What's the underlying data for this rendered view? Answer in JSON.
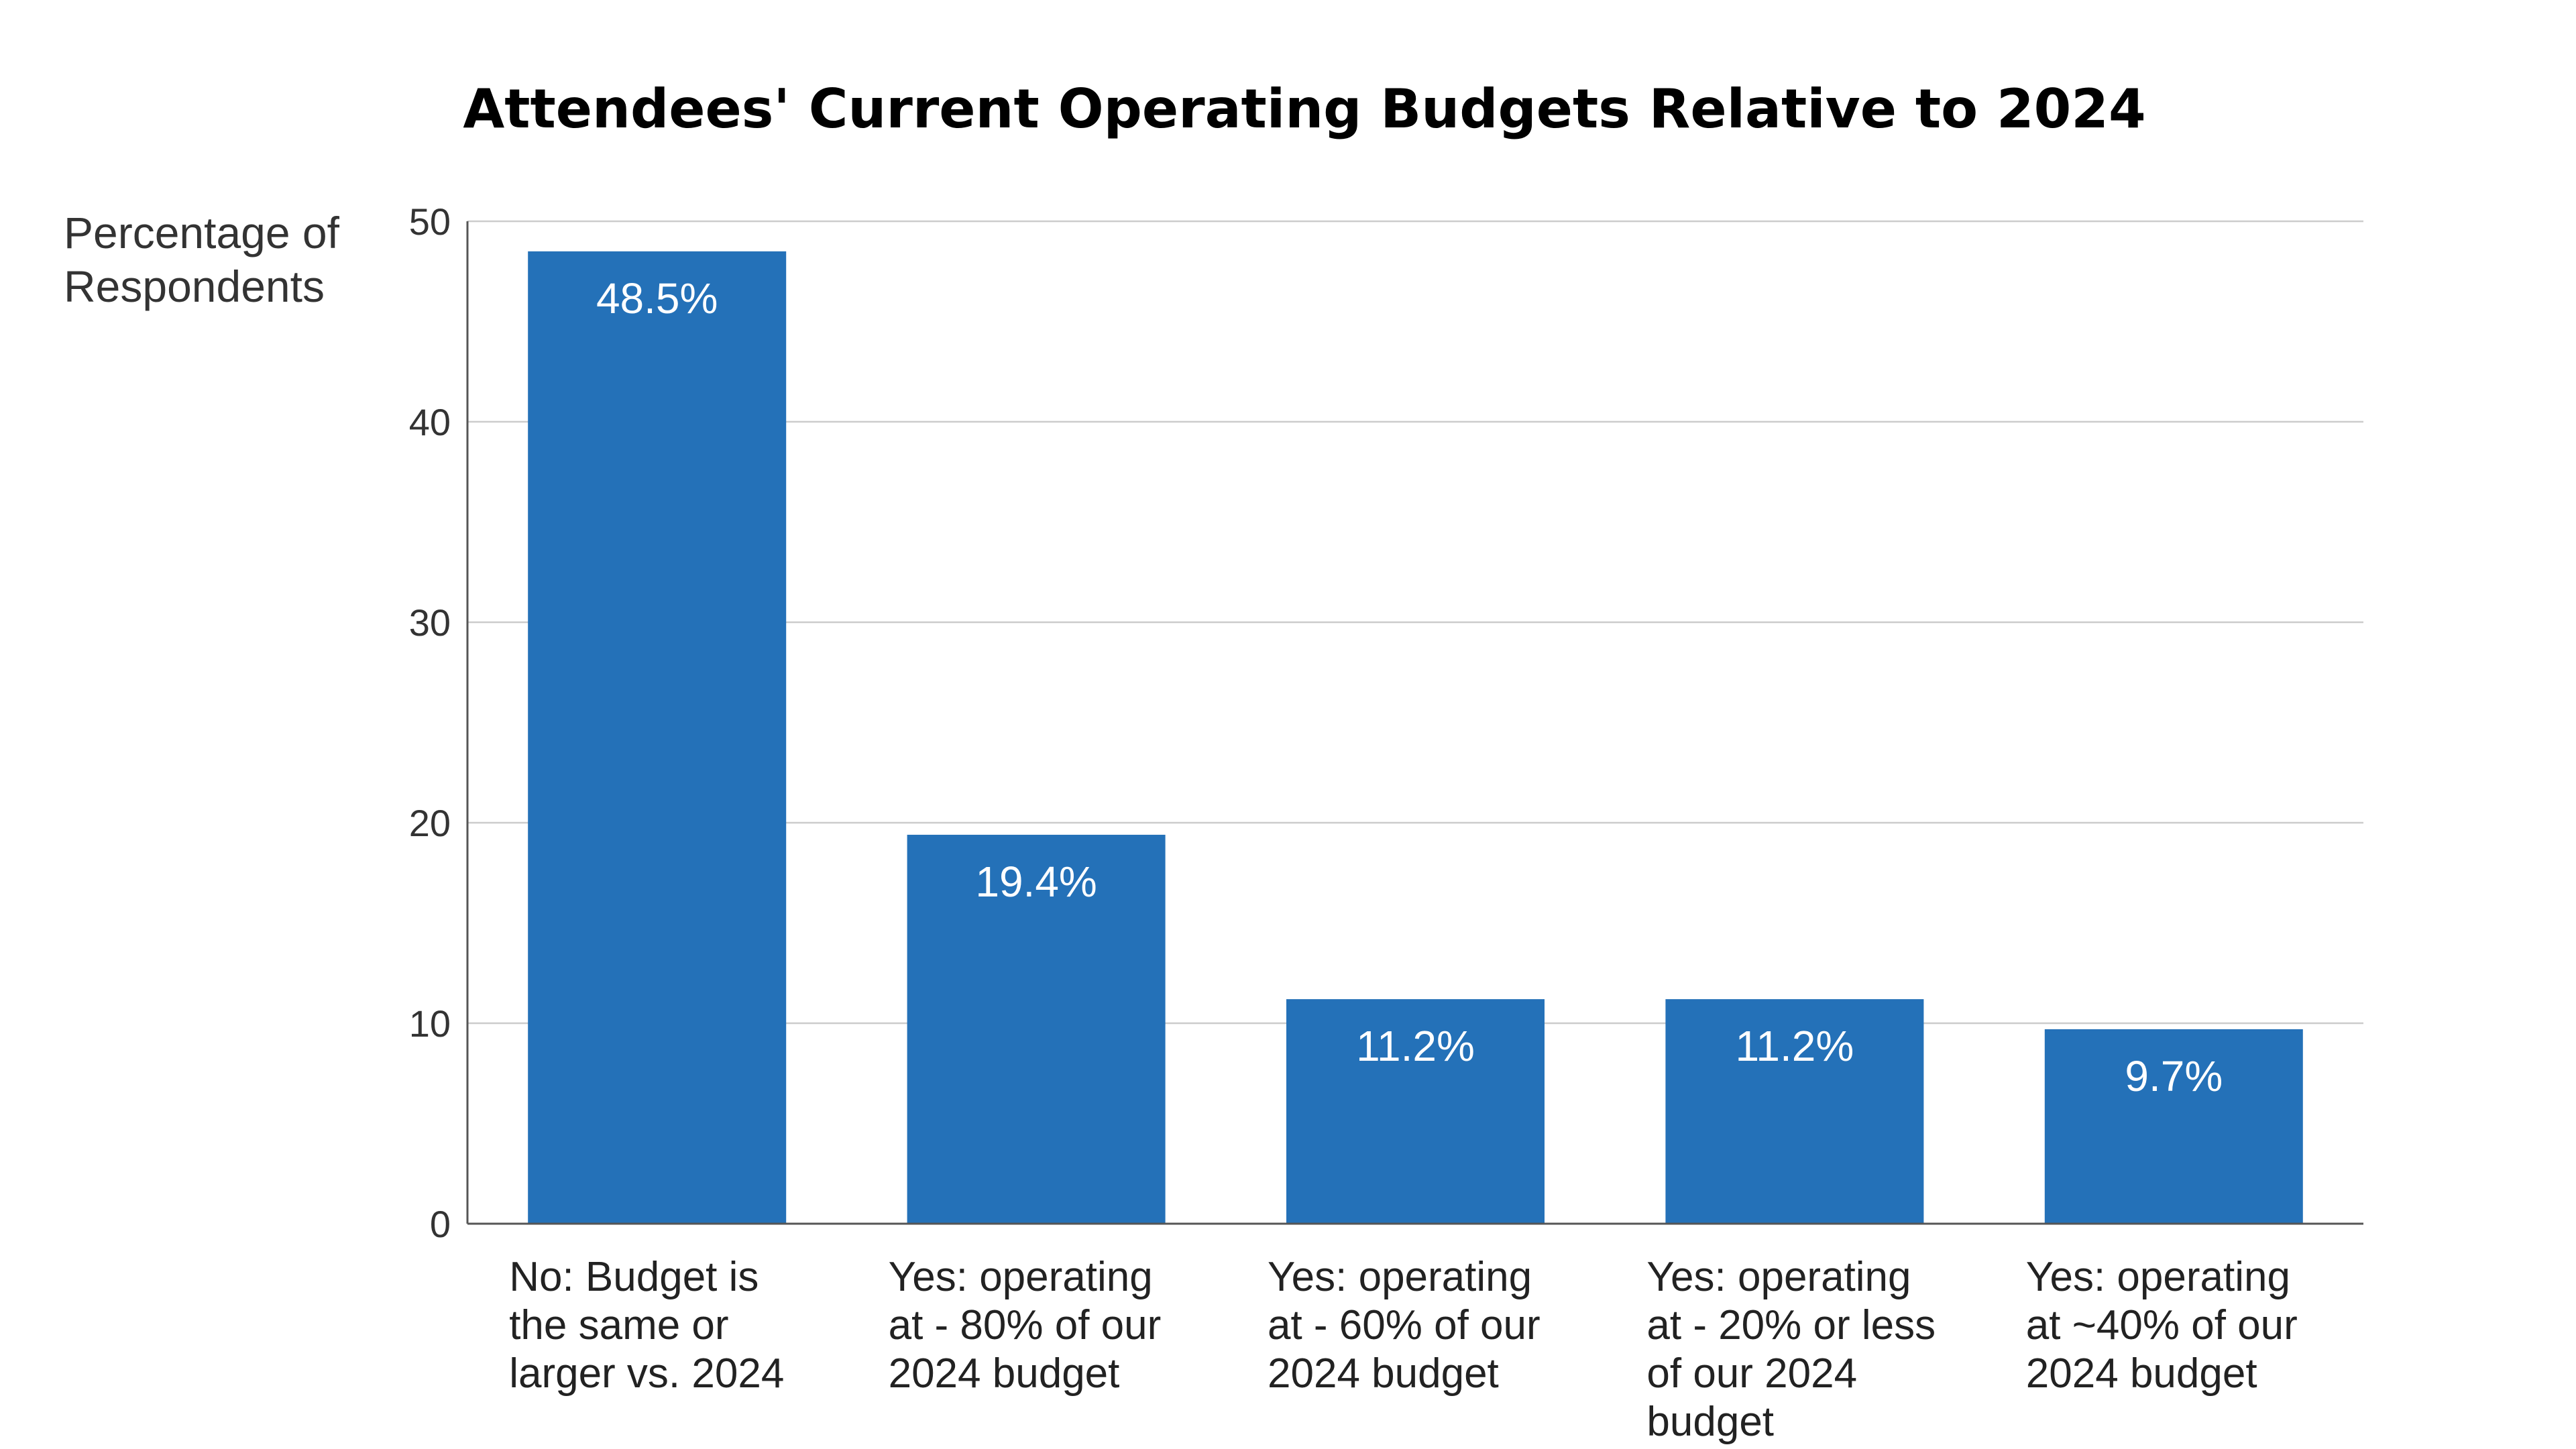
{
  "chart_data": {
    "type": "bar",
    "title": "Attendees' Current Operating Budgets Relative to 2024",
    "ylabel": [
      "Percentage of",
      "Respondents"
    ],
    "xlabel": "",
    "ylim": [
      0,
      50
    ],
    "yticks": [
      0,
      10,
      20,
      30,
      40,
      50
    ],
    "grid": true,
    "categories": [
      [
        "No: Budget is",
        "the same or",
        "larger vs. 2024"
      ],
      [
        "Yes: operating",
        "at - 80% of our",
        "2024 budget"
      ],
      [
        "Yes: operating",
        "at - 60% of our",
        "2024 budget"
      ],
      [
        "Yes: operating",
        "at - 20% or less",
        "of our 2024",
        "budget"
      ],
      [
        "Yes: operating",
        "at ~40% of our",
        "2024 budget"
      ]
    ],
    "values": [
      48.5,
      19.4,
      11.2,
      11.2,
      9.7
    ],
    "value_labels": [
      "48.5%",
      "19.4%",
      "11.2%",
      "11.2%",
      "9.7%"
    ],
    "bar_color": "#2471b8"
  }
}
